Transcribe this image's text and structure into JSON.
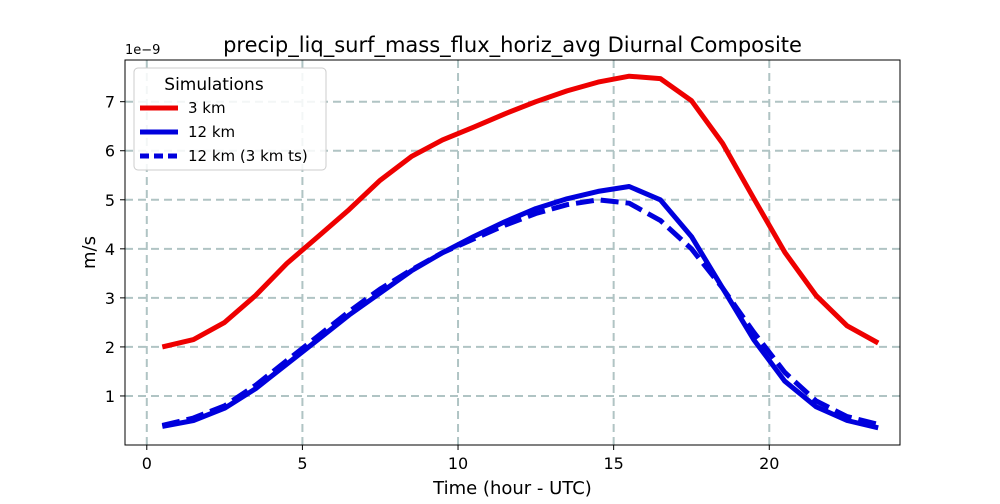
{
  "chart_data": {
    "type": "line",
    "title": "precip_liq_surf_mass_flux_horiz_avg Diurnal Composite",
    "xlabel": "Time (hour - UTC)",
    "ylabel": "m/s",
    "y_offset_text": "1e−9",
    "xlim": [
      -0.7,
      24.2
    ],
    "ylim": [
      0.0,
      7.85
    ],
    "x_ticks": [
      0,
      5,
      10,
      15,
      20
    ],
    "x_tick_labels": [
      "0",
      "5",
      "10",
      "15",
      "20"
    ],
    "y_ticks": [
      1,
      2,
      3,
      4,
      5,
      6,
      7
    ],
    "y_tick_labels": [
      "1",
      "2",
      "3",
      "4",
      "5",
      "6",
      "7"
    ],
    "grid": true,
    "legend": {
      "title": "Simulations",
      "placement": "top-left"
    },
    "x": [
      0.5,
      1.5,
      2.5,
      3.5,
      4.5,
      5.5,
      6.5,
      7.5,
      8.5,
      9.5,
      10.5,
      11.5,
      12.5,
      13.5,
      14.5,
      15.5,
      16.5,
      17.5,
      18.5,
      19.5,
      20.5,
      21.5,
      22.5,
      23.5
    ],
    "series": [
      {
        "name": "3 km",
        "color": "#ee0000",
        "dash": "solid",
        "values": [
          2.0,
          2.15,
          2.5,
          3.05,
          3.7,
          4.25,
          4.8,
          5.4,
          5.88,
          6.22,
          6.48,
          6.75,
          7.0,
          7.22,
          7.4,
          7.52,
          7.47,
          7.02,
          6.15,
          5.03,
          3.93,
          3.05,
          2.43,
          2.08
        ]
      },
      {
        "name": "12 km",
        "color": "#0000dd",
        "dash": "solid",
        "values": [
          0.38,
          0.5,
          0.75,
          1.15,
          1.65,
          2.15,
          2.65,
          3.1,
          3.55,
          3.92,
          4.25,
          4.55,
          4.82,
          5.02,
          5.17,
          5.27,
          5.0,
          4.25,
          3.2,
          2.15,
          1.3,
          0.78,
          0.5,
          0.35
        ]
      },
      {
        "name": "12 km (3 km ts)",
        "color": "#0000dd",
        "dash": "dashed",
        "values": [
          0.4,
          0.55,
          0.8,
          1.22,
          1.72,
          2.22,
          2.72,
          3.18,
          3.57,
          3.92,
          4.2,
          4.48,
          4.72,
          4.9,
          5.0,
          4.93,
          4.58,
          4.0,
          3.2,
          2.3,
          1.48,
          0.9,
          0.58,
          0.42
        ]
      }
    ]
  }
}
